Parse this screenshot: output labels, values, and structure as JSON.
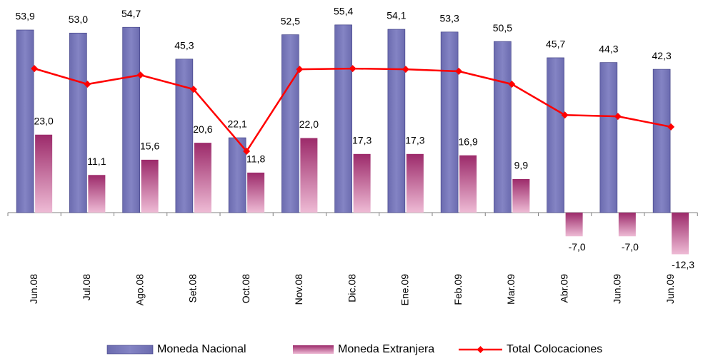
{
  "chart_data": {
    "type": "bar-line",
    "categories": [
      "Jun.08",
      "Jul.08",
      "Ago.08",
      "Set.08",
      "Oct.08",
      "Nov.08",
      "Dic.08",
      "Ene.09",
      "Feb.09",
      "Mar.09",
      "Abr.09",
      "Jun.09",
      "Jun.09"
    ],
    "series": [
      {
        "name": "Moneda Nacional",
        "type": "bar",
        "color": "#6b6baf",
        "values": [
          53.9,
          53.0,
          54.7,
          45.3,
          22.1,
          52.5,
          55.4,
          54.1,
          53.3,
          50.5,
          45.7,
          44.3,
          42.3
        ],
        "value_labels": [
          "53,9",
          "53,0",
          "54,7",
          "45,3",
          "22,1",
          "52,5",
          "55,4",
          "54,1",
          "53,3",
          "50,5",
          "45,7",
          "44,3",
          "42,3"
        ]
      },
      {
        "name": "Moneda Extranjera",
        "type": "bar",
        "color": "#9c2a6a",
        "values": [
          23.0,
          11.1,
          15.6,
          20.6,
          11.8,
          22.0,
          17.3,
          17.3,
          16.9,
          9.9,
          -7.0,
          -7.0,
          -12.3
        ],
        "value_labels": [
          "23,0",
          "11,1",
          "15,6",
          "20,6",
          "11,8",
          "22,0",
          "17,3",
          "17,3",
          "16,9",
          "9,9",
          "-7,0",
          "-7,0",
          "-12,3"
        ]
      },
      {
        "name": "Total Colocaciones",
        "type": "line",
        "color": "#ff0000",
        "values": [
          42.5,
          37.9,
          40.6,
          36.4,
          18.1,
          42.3,
          42.5,
          42.3,
          41.7,
          37.9,
          28.8,
          28.4,
          25.3
        ]
      }
    ],
    "ylim": [
      -15,
      60
    ]
  }
}
